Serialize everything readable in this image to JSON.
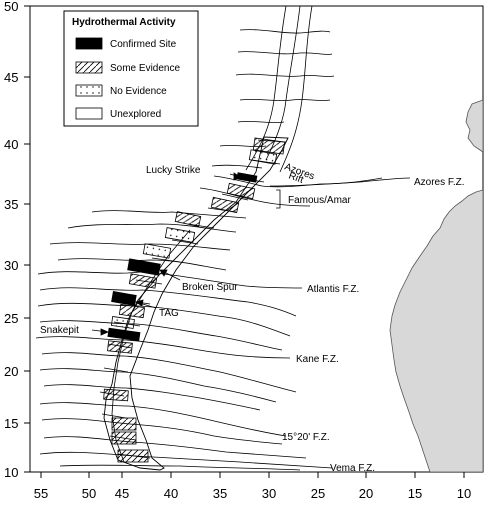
{
  "map": {
    "axes": {
      "x_ticks": [
        "55",
        "50",
        "45",
        "40",
        "35",
        "30",
        "25",
        "20",
        "15",
        "10"
      ],
      "y_ticks": [
        "50",
        "45",
        "40",
        "35",
        "30",
        "25",
        "20",
        "15",
        "10"
      ]
    },
    "legend": {
      "title": "Hydrothermal Activity",
      "items": [
        {
          "label": "Confirmed Site",
          "pattern": "solid-black"
        },
        {
          "label": "Some Evidence",
          "pattern": "diagonal-hatch"
        },
        {
          "label": "No Evidence",
          "pattern": "dotted"
        },
        {
          "label": "Unexplored",
          "pattern": "empty"
        }
      ]
    },
    "labels": {
      "lucky_strike": "Lucky Strike",
      "azores_fz": "Azores F.Z.",
      "famous_amar": "Famous/Amar",
      "broken_spur": "Broken Spur",
      "atlantis_fz": "Atlantis F.Z.",
      "tag": "TAG",
      "snakepit": "Snakepit",
      "kane_fz": "Kane F.Z.",
      "fz_15_20": "15°20' F.Z.",
      "vema_fz": "Vema F.Z.",
      "azores_rift_1": "Azores",
      "azores_rift_2": "Rift"
    },
    "colors": {
      "land": "#d8d8d8",
      "ink": "#000000"
    }
  }
}
